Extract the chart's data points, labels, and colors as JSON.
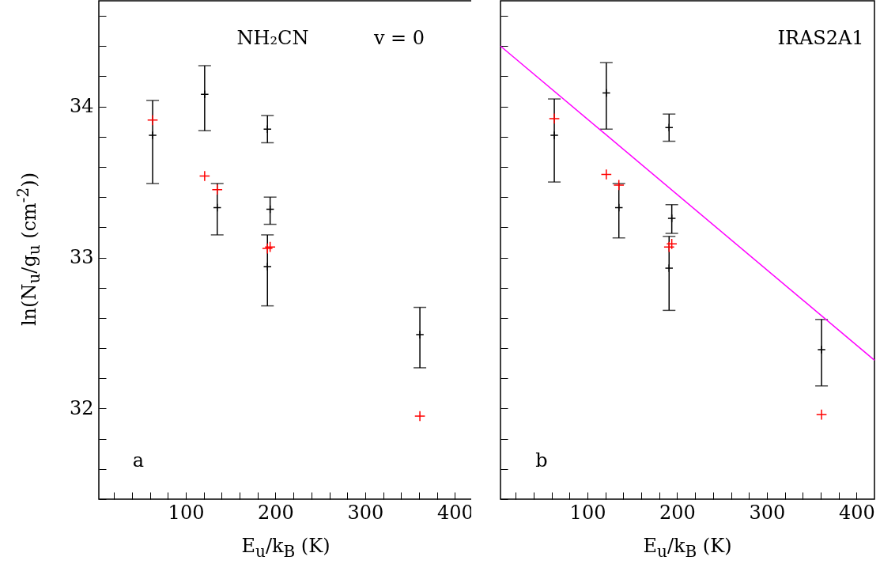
{
  "chart_data": [
    {
      "type": "scatter",
      "xlabel": "E$_{u}$/k$_{B}$ (K)",
      "ylabel": "ln(N$_{u}$/g$_{u}$ (cm$^{-2}$))",
      "annotations": [
        "NH₂CN",
        "v = 0",
        "a"
      ],
      "xlim": [
        3,
        420
      ],
      "ylim": [
        31.4,
        34.7
      ],
      "xticks": [
        {
          "value": 20,
          "label": null
        },
        {
          "value": 40,
          "label": null
        },
        {
          "value": 60,
          "label": null
        },
        {
          "value": 80,
          "label": null
        },
        100,
        {
          "value": 120,
          "label": null
        },
        {
          "value": 140,
          "label": null
        },
        {
          "value": 160,
          "label": null
        },
        {
          "value": 180,
          "label": null
        },
        200,
        {
          "value": 220,
          "label": null
        },
        {
          "value": 240,
          "label": null
        },
        {
          "value": 260,
          "label": null
        },
        {
          "value": 280,
          "label": null
        },
        300,
        {
          "value": 320,
          "label": null
        },
        {
          "value": 340,
          "label": null
        },
        {
          "value": 360,
          "label": null
        },
        {
          "value": 380,
          "label": null
        },
        400
      ],
      "yticks": [
        {
          "value": 31.4,
          "label": null
        },
        {
          "value": 31.6,
          "label": null
        },
        {
          "value": 31.8,
          "label": null
        },
        32,
        {
          "value": 32.2,
          "label": null
        },
        {
          "value": 32.4,
          "label": null
        },
        {
          "value": 32.6,
          "label": null
        },
        {
          "value": 32.8,
          "label": null
        },
        33,
        {
          "value": 33.2,
          "label": null
        },
        {
          "value": 33.4,
          "label": null
        },
        {
          "value": 33.6,
          "label": null
        },
        {
          "value": 33.8,
          "label": null
        },
        34,
        {
          "value": 34.2,
          "label": null
        },
        {
          "value": 34.4,
          "label": null
        },
        {
          "value": 34.6,
          "label": null
        }
      ],
      "grid": false,
      "series": [
        {
          "color": "#000000",
          "marker": "cross",
          "x": [
            63,
            121,
            135,
            191,
            194,
            191,
            361
          ],
          "values": [
            33.81,
            34.08,
            33.33,
            33.85,
            33.32,
            32.94,
            32.49
          ],
          "errors": [
            [
              33.49,
              34.04
            ],
            [
              33.84,
              34.27
            ],
            [
              33.15,
              33.49
            ],
            [
              33.76,
              33.94
            ],
            [
              33.22,
              33.4
            ],
            [
              32.68,
              33.15
            ],
            [
              32.27,
              32.67
            ]
          ]
        },
        {
          "color": "#ff0000",
          "marker": "cross",
          "x": [
            63,
            121,
            135,
            191,
            194,
            361
          ],
          "values": [
            33.91,
            33.54,
            33.45,
            33.06,
            33.07,
            31.95
          ]
        }
      ]
    },
    {
      "type": "scatter",
      "xlabel": "E$_{u}$/k$_{B}$ (K)",
      "annotations": [
        "IRAS2A1",
        "b"
      ],
      "tick_labels": "x",
      "xlim": [
        3,
        420
      ],
      "ylim": [
        31.4,
        34.7
      ],
      "xticks": [
        {
          "value": 20,
          "label": null
        },
        {
          "value": 40,
          "label": null
        },
        {
          "value": 60,
          "label": null
        },
        {
          "value": 80,
          "label": null
        },
        100,
        {
          "value": 120,
          "label": null
        },
        {
          "value": 140,
          "label": null
        },
        {
          "value": 160,
          "label": null
        },
        {
          "value": 180,
          "label": null
        },
        200,
        {
          "value": 220,
          "label": null
        },
        {
          "value": 240,
          "label": null
        },
        {
          "value": 260,
          "label": null
        },
        {
          "value": 280,
          "label": null
        },
        300,
        {
          "value": 320,
          "label": null
        },
        {
          "value": 340,
          "label": null
        },
        {
          "value": 360,
          "label": null
        },
        {
          "value": 380,
          "label": null
        },
        400
      ],
      "yticks": [
        {
          "value": 31.4,
          "label": null
        },
        {
          "value": 31.6,
          "label": null
        },
        {
          "value": 31.8,
          "label": null
        },
        32,
        {
          "value": 32.2,
          "label": null
        },
        {
          "value": 32.4,
          "label": null
        },
        {
          "value": 32.6,
          "label": null
        },
        {
          "value": 32.8,
          "label": null
        },
        33,
        {
          "value": 33.2,
          "label": null
        },
        {
          "value": 33.4,
          "label": null
        },
        {
          "value": 33.6,
          "label": null
        },
        {
          "value": 33.8,
          "label": null
        },
        34,
        {
          "value": 34.2,
          "label": null
        },
        {
          "value": 34.4,
          "label": null
        },
        {
          "value": 34.6,
          "label": null
        }
      ],
      "grid": false,
      "series": [
        {
          "color": "#000000",
          "marker": "cross",
          "x": [
            63,
            121,
            135,
            191,
            194,
            191,
            361
          ],
          "values": [
            33.81,
            34.09,
            33.33,
            33.86,
            33.26,
            32.93,
            32.39
          ],
          "errors": [
            [
              33.5,
              34.05
            ],
            [
              33.85,
              34.29
            ],
            [
              33.13,
              33.49
            ],
            [
              33.77,
              33.95
            ],
            [
              33.16,
              33.35
            ],
            [
              32.65,
              33.14
            ],
            [
              32.15,
              32.59
            ]
          ]
        },
        {
          "color": "#ff0000",
          "marker": "cross",
          "x": [
            63,
            121,
            135,
            191,
            194,
            361
          ],
          "values": [
            33.92,
            33.55,
            33.48,
            33.07,
            33.09,
            31.96
          ]
        },
        {
          "type": "line",
          "color": "#ff00ff",
          "x": [
            3,
            420
          ],
          "values": [
            34.4,
            32.32
          ]
        }
      ]
    }
  ]
}
